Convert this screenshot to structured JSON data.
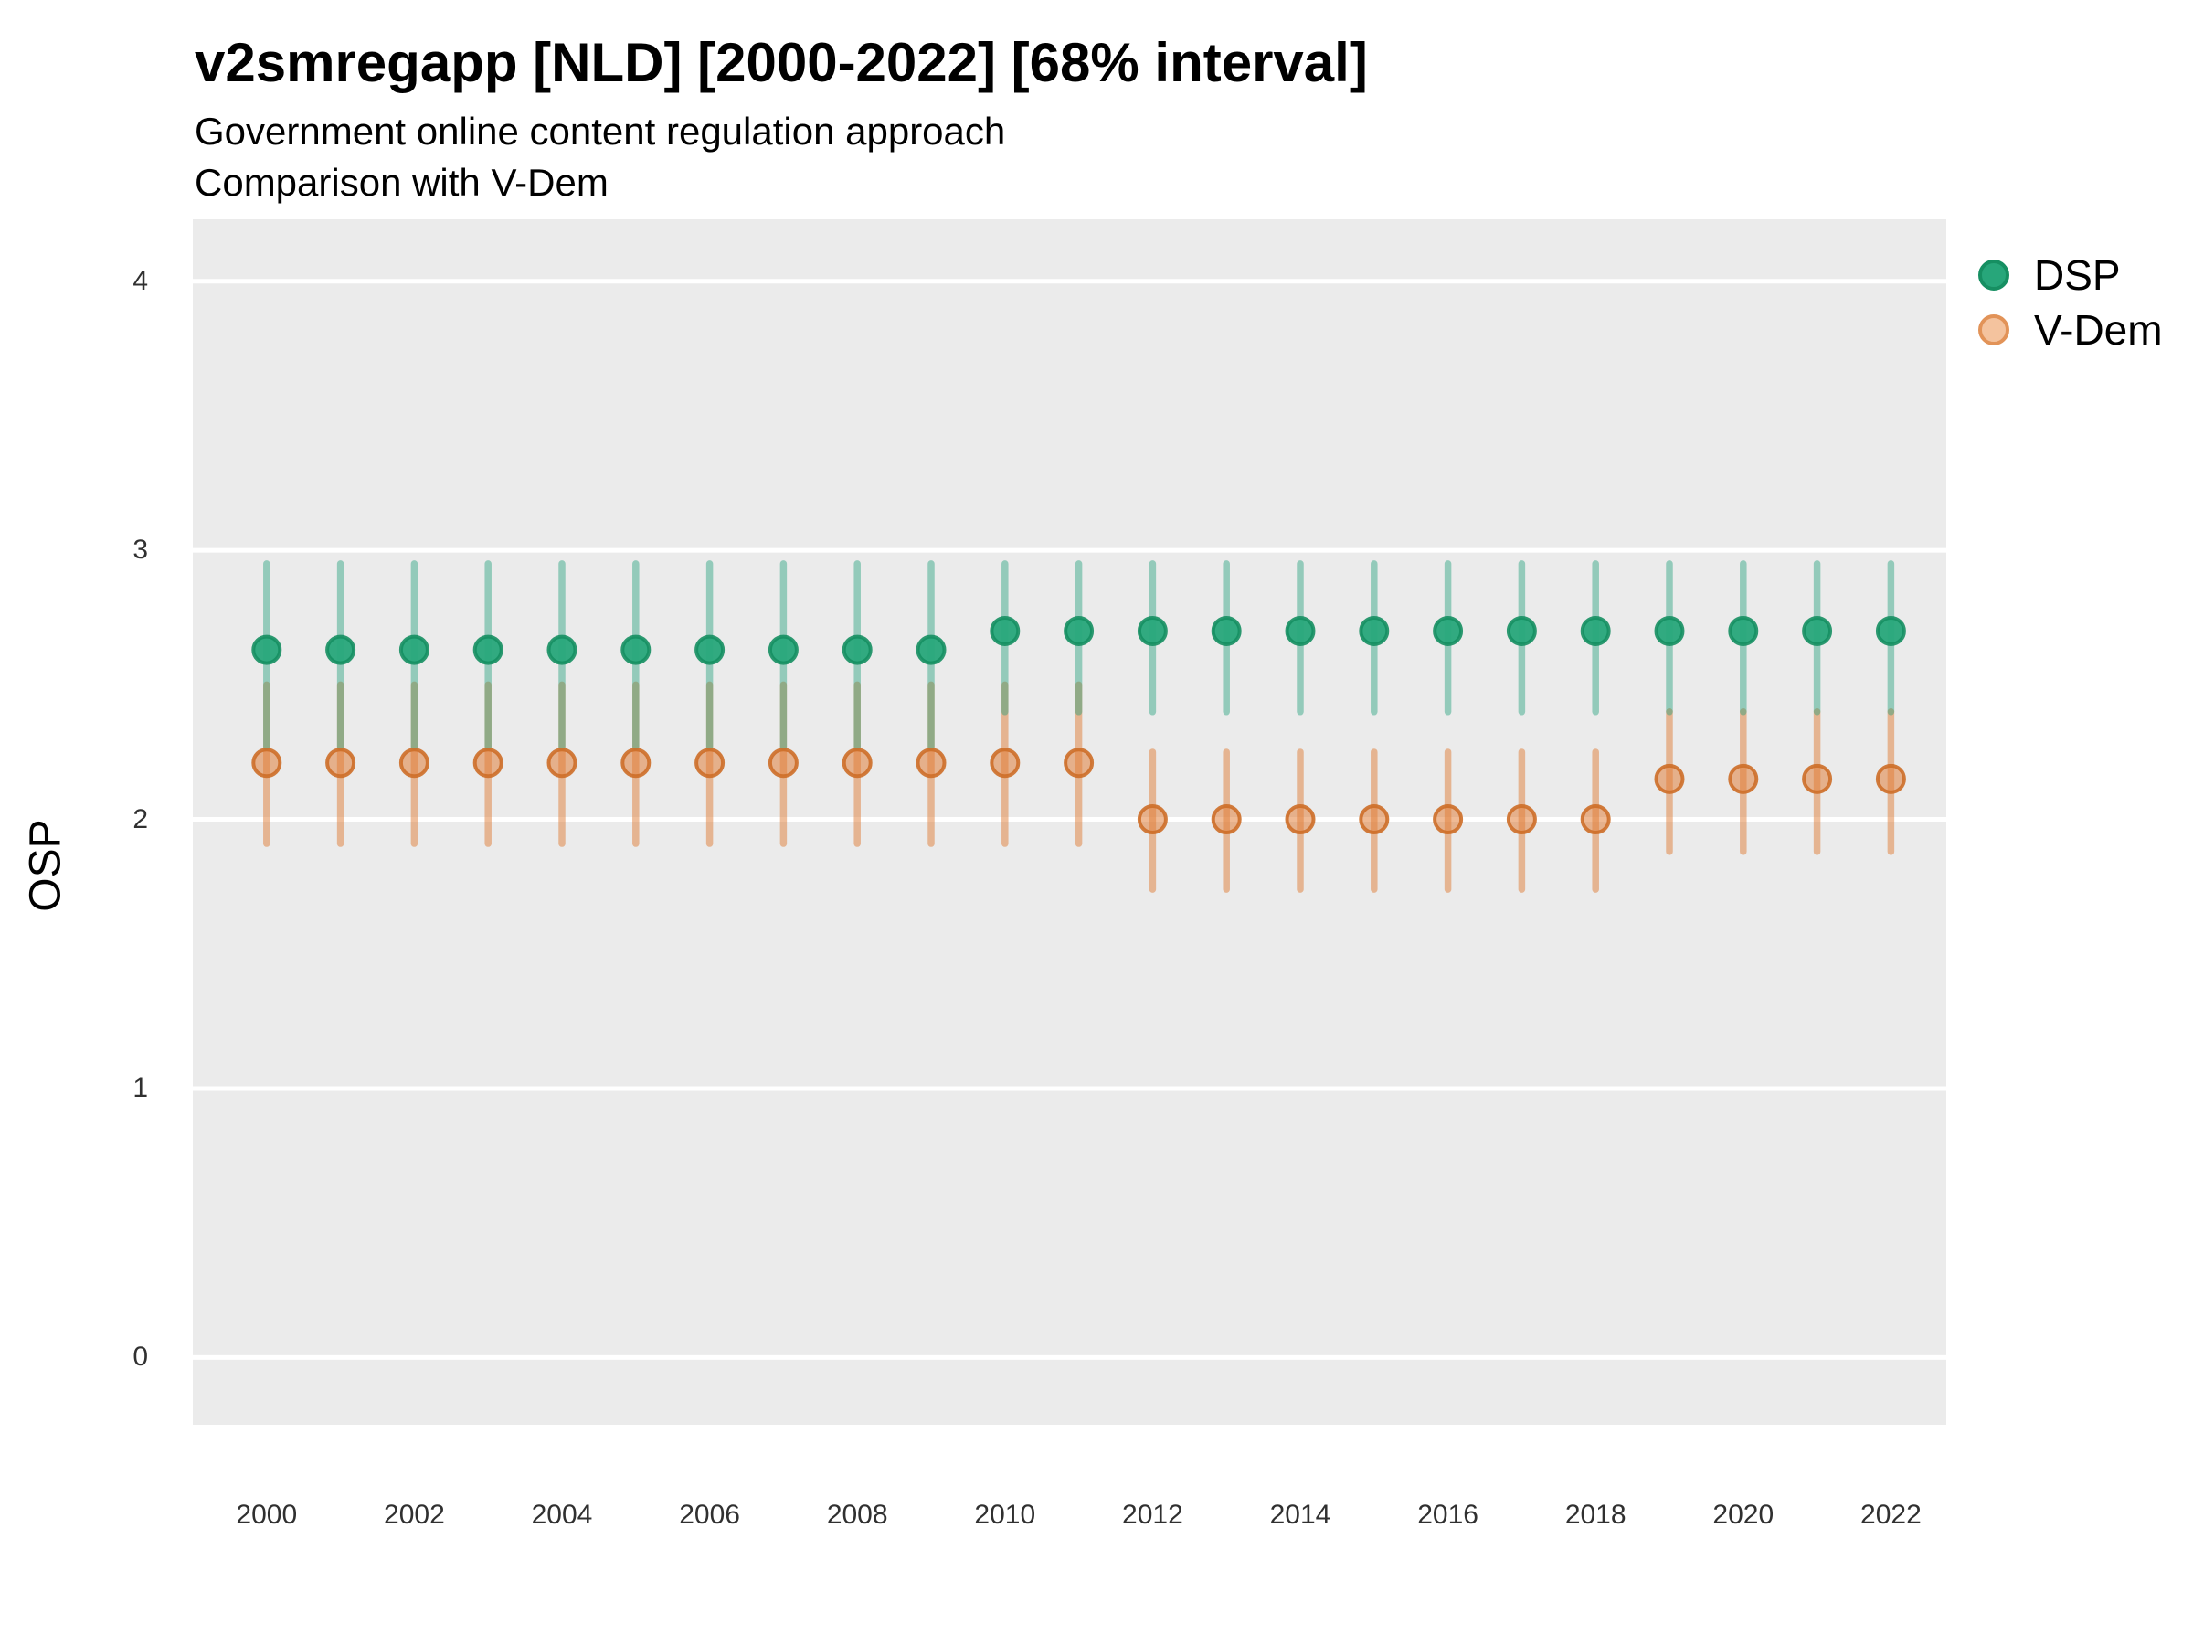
{
  "header": {
    "title": "v2smregapp [NLD] [2000-2022] [68% interval]",
    "subtitle_line1": "Government online content regulation approach",
    "subtitle_line2": "Comparison with V-Dem"
  },
  "axes": {
    "y_title": "OSP",
    "x_title": ""
  },
  "legend": {
    "position": "right",
    "items": [
      {
        "label": "DSP"
      },
      {
        "label": "V-Dem"
      }
    ]
  },
  "chart_data": {
    "type": "pointrange",
    "title": "v2smregapp [NLD] [2000-2022] [68% interval]",
    "subtitle": [
      "Government online content regulation approach",
      "Comparison with V-Dem"
    ],
    "xlabel": "",
    "ylabel": "OSP",
    "interval": "68%",
    "country": "NLD",
    "xlim": [
      1999.0,
      2022.75
    ],
    "ylim": [
      -0.25,
      4.23
    ],
    "x_ticks": [
      2000,
      2002,
      2004,
      2006,
      2008,
      2010,
      2012,
      2014,
      2016,
      2018,
      2020,
      2022
    ],
    "y_ticks": [
      0,
      1,
      2,
      3,
      4
    ],
    "grid": "major horizontal white lines on gray panel",
    "legend_position": "right",
    "x": [
      2000,
      2001,
      2002,
      2003,
      2004,
      2005,
      2006,
      2007,
      2008,
      2009,
      2010,
      2011,
      2012,
      2013,
      2014,
      2015,
      2016,
      2017,
      2018,
      2019,
      2020,
      2021,
      2022
    ],
    "series": [
      {
        "name": "DSP",
        "values": [
          2.63,
          2.63,
          2.63,
          2.63,
          2.63,
          2.63,
          2.63,
          2.63,
          2.63,
          2.63,
          2.7,
          2.7,
          2.7,
          2.7,
          2.7,
          2.7,
          2.7,
          2.7,
          2.7,
          2.7,
          2.7,
          2.7,
          2.7
        ],
        "lo": [
          2.27,
          2.27,
          2.27,
          2.27,
          2.27,
          2.27,
          2.27,
          2.27,
          2.27,
          2.27,
          2.4,
          2.4,
          2.4,
          2.4,
          2.4,
          2.4,
          2.4,
          2.4,
          2.4,
          2.4,
          2.4,
          2.4,
          2.4
        ],
        "hi": [
          2.95,
          2.95,
          2.95,
          2.95,
          2.95,
          2.95,
          2.95,
          2.95,
          2.95,
          2.95,
          2.95,
          2.95,
          2.95,
          2.95,
          2.95,
          2.95,
          2.95,
          2.95,
          2.95,
          2.95,
          2.95,
          2.95,
          2.95
        ]
      },
      {
        "name": "V-Dem",
        "values": [
          2.21,
          2.21,
          2.21,
          2.21,
          2.21,
          2.21,
          2.21,
          2.21,
          2.21,
          2.21,
          2.21,
          2.21,
          2.0,
          2.0,
          2.0,
          2.0,
          2.0,
          2.0,
          2.0,
          2.15,
          2.15,
          2.15,
          2.15
        ],
        "lo": [
          1.91,
          1.91,
          1.91,
          1.91,
          1.91,
          1.91,
          1.91,
          1.91,
          1.91,
          1.91,
          1.91,
          1.91,
          1.74,
          1.74,
          1.74,
          1.74,
          1.74,
          1.74,
          1.74,
          1.88,
          1.88,
          1.88,
          1.88
        ],
        "hi": [
          2.5,
          2.5,
          2.5,
          2.5,
          2.5,
          2.5,
          2.5,
          2.5,
          2.5,
          2.5,
          2.5,
          2.5,
          2.25,
          2.25,
          2.25,
          2.25,
          2.25,
          2.25,
          2.25,
          2.4,
          2.4,
          2.4,
          2.4
        ]
      }
    ],
    "style": {
      "panel_bg": "#ebebeb",
      "grid_color": "#ffffff",
      "dsp_bar": "rgba(27,158,119,0.42)",
      "dsp_point_fill": "#27a67a",
      "dsp_point_stroke": "#168f62",
      "vdem_bar": "rgba(223,125,55,0.5)",
      "vdem_point_fill": "rgba(224,123,51,0.52)",
      "vdem_point_stroke": "rgba(205,110,40,0.9)",
      "legend_dsp_fill": "#27a67a",
      "legend_dsp_stroke": "#168f62",
      "legend_vdem_fill": "#f4c39e",
      "legend_vdem_stroke": "#e29358"
    }
  }
}
